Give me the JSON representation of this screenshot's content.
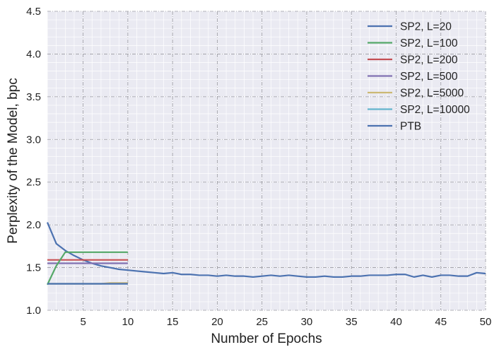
{
  "chart_data": {
    "type": "line",
    "title": "",
    "xlabel": "Number of Epochs",
    "ylabel": "Perplexity of the Model, bpc",
    "xlim": [
      1,
      50
    ],
    "ylim": [
      1.0,
      4.5
    ],
    "xticks": [
      5,
      10,
      15,
      20,
      25,
      30,
      35,
      40,
      45,
      50
    ],
    "yticks": [
      1.0,
      1.5,
      2.0,
      2.5,
      3.0,
      3.5,
      4.0,
      4.5
    ],
    "xtick_labels": [
      "5",
      "10",
      "15",
      "20",
      "25",
      "30",
      "35",
      "40",
      "45",
      "50"
    ],
    "ytick_labels": [
      "1.0",
      "1.5",
      "2.0",
      "2.5",
      "3.0",
      "3.5",
      "4.0",
      "4.5"
    ],
    "grid": true,
    "minor_grid": true,
    "legend_position": "top-right",
    "background": "#eaeaf2",
    "series": [
      {
        "name": "SP2, L=20",
        "color": "#4c72b0",
        "x": [
          1,
          2,
          3,
          4,
          5,
          6,
          7,
          8,
          9,
          10
        ],
        "y": [
          1.31,
          1.31,
          1.31,
          1.31,
          1.31,
          1.31,
          1.31,
          1.31,
          1.31,
          1.31
        ]
      },
      {
        "name": "SP2, L=100",
        "color": "#55a868",
        "x": [
          1,
          2,
          3,
          4,
          5,
          6,
          7,
          8,
          9,
          10
        ],
        "y": [
          1.3,
          1.52,
          1.68,
          1.68,
          1.68,
          1.68,
          1.68,
          1.68,
          1.68,
          1.68
        ]
      },
      {
        "name": "SP2, L=200",
        "color": "#c44e52",
        "x": [
          1,
          2,
          3,
          4,
          5,
          6,
          7,
          8,
          9,
          10
        ],
        "y": [
          1.59,
          1.59,
          1.59,
          1.59,
          1.59,
          1.59,
          1.59,
          1.59,
          1.59,
          1.59
        ]
      },
      {
        "name": "SP2, L=500",
        "color": "#8172b2",
        "x": [
          1,
          2,
          3,
          4,
          5,
          6,
          7,
          8,
          9,
          10
        ],
        "y": [
          1.55,
          1.55,
          1.55,
          1.55,
          1.55,
          1.55,
          1.55,
          1.55,
          1.55,
          1.55
        ]
      },
      {
        "name": "SP2, L=5000",
        "color": "#ccb974",
        "x": [
          1,
          2,
          3,
          4,
          5,
          6,
          7,
          8,
          9,
          10
        ],
        "y": [
          1.31,
          1.31,
          1.31,
          1.31,
          1.31,
          1.31,
          1.31,
          1.32,
          1.32,
          1.32
        ]
      },
      {
        "name": "SP2, L=10000",
        "color": "#64b5cd",
        "x": [
          1,
          2,
          3,
          4,
          5,
          6,
          7,
          8,
          9,
          10
        ],
        "y": [
          1.31,
          1.31,
          1.31,
          1.31,
          1.31,
          1.31,
          1.31,
          1.31,
          1.31,
          1.31
        ]
      },
      {
        "name": "PTB",
        "color": "#4c72b0",
        "x": [
          1,
          2,
          3,
          4,
          5,
          6,
          7,
          8,
          9,
          10,
          11,
          12,
          13,
          14,
          15,
          16,
          17,
          18,
          19,
          20,
          21,
          22,
          23,
          24,
          25,
          26,
          27,
          28,
          29,
          30,
          31,
          32,
          33,
          34,
          35,
          36,
          37,
          38,
          39,
          40,
          41,
          42,
          43,
          44,
          45,
          46,
          47,
          48,
          49,
          50
        ],
        "y": [
          2.03,
          1.78,
          1.7,
          1.64,
          1.59,
          1.55,
          1.52,
          1.5,
          1.48,
          1.47,
          1.46,
          1.45,
          1.44,
          1.43,
          1.44,
          1.42,
          1.42,
          1.41,
          1.41,
          1.4,
          1.41,
          1.4,
          1.4,
          1.39,
          1.4,
          1.41,
          1.4,
          1.41,
          1.4,
          1.39,
          1.39,
          1.4,
          1.39,
          1.39,
          1.4,
          1.4,
          1.41,
          1.41,
          1.41,
          1.42,
          1.42,
          1.39,
          1.41,
          1.39,
          1.41,
          1.41,
          1.4,
          1.4,
          1.44,
          1.43
        ]
      }
    ]
  }
}
